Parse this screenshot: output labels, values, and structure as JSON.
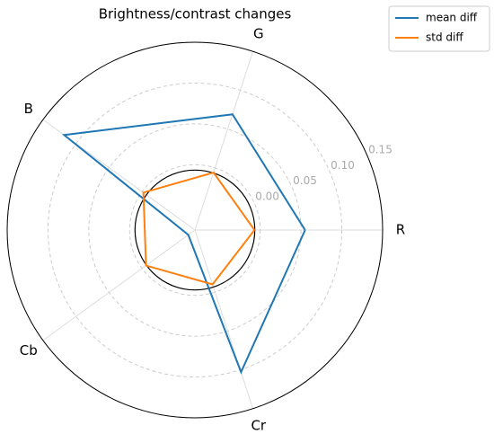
{
  "chart_data": {
    "type": "radar",
    "title": "Brightness/contrast changes",
    "categories": [
      "R",
      "G",
      "B",
      "Cb",
      "Cr"
    ],
    "series": [
      {
        "name": "mean diff",
        "color": "#1f77b4",
        "values": [
          0.055,
          0.069,
          0.118,
          -0.07,
          0.103
        ]
      },
      {
        "name": "std diff",
        "color": "#ff7f0e",
        "values": [
          -0.007,
          -0.006,
          -0.002,
          -0.006,
          -0.01
        ]
      }
    ],
    "ylim": [
      -0.08,
      0.15
    ],
    "yticks": [
      {
        "value": 0,
        "label": "0.00"
      },
      {
        "value": 0.05,
        "label": "0.05"
      },
      {
        "value": 0.1,
        "label": "0.10"
      },
      {
        "value": 0.15,
        "label": "0.15"
      }
    ],
    "grid": true
  }
}
